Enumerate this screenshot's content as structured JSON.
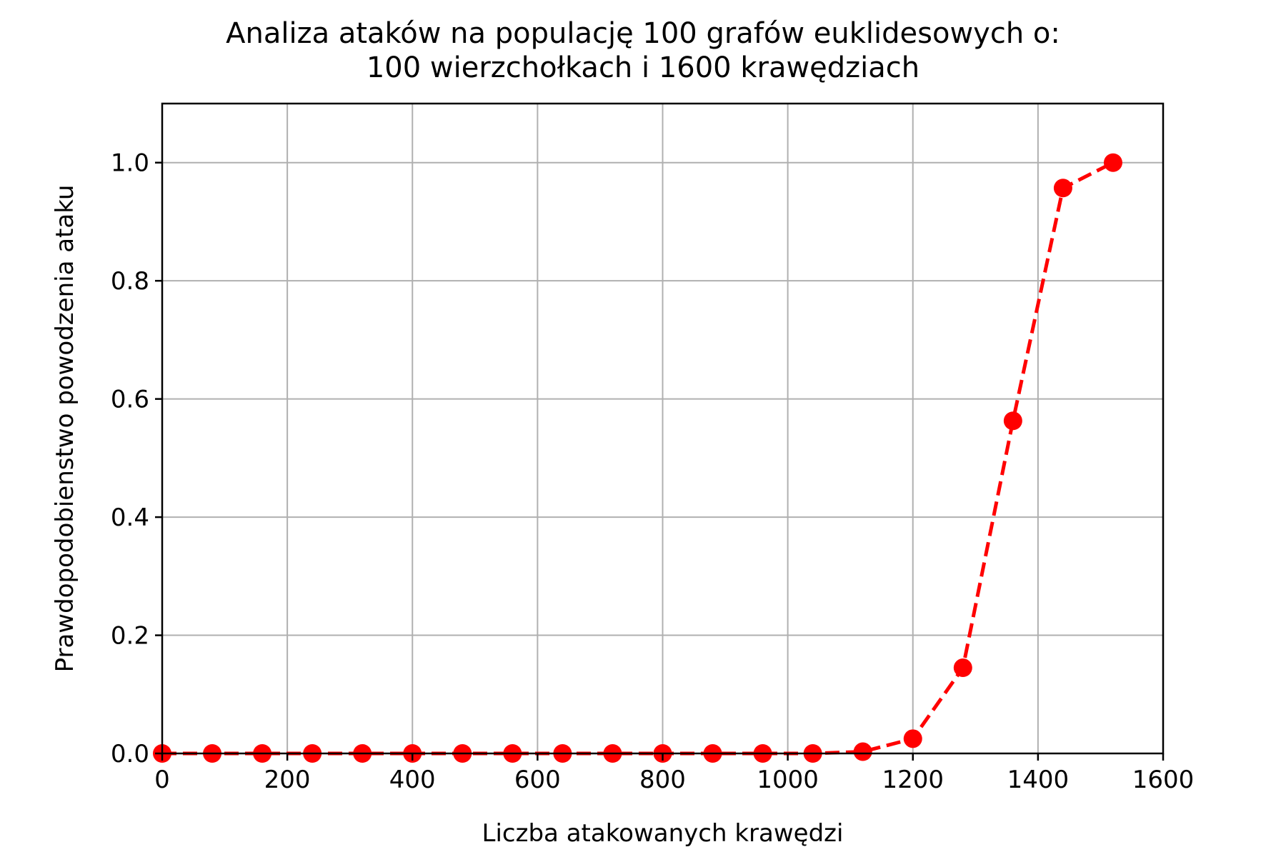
{
  "chart_data": {
    "type": "line",
    "title": [
      "Analiza ataków na populację 100 grafów euklidesowych o:",
      "100 wierzchołkach i 1600 krawędziach"
    ],
    "xlabel": "Liczba atakowanych krawędzi",
    "ylabel": "Prawdopodobienstwo powodzenia ataku",
    "xlim": [
      0,
      1600
    ],
    "ylim": [
      0,
      1.1
    ],
    "xticks": [
      0,
      200,
      400,
      600,
      800,
      1000,
      1200,
      1400,
      1600
    ],
    "yticks": [
      0.0,
      0.2,
      0.4,
      0.6,
      0.8,
      1.0
    ],
    "xtick_labels": [
      "0",
      "200",
      "400",
      "600",
      "800",
      "1000",
      "1200",
      "1400",
      "1600"
    ],
    "ytick_labels": [
      "0.0",
      "0.2",
      "0.4",
      "0.6",
      "0.8",
      "1.0"
    ],
    "grid": true,
    "series": [
      {
        "color": "#ff0000",
        "line_style": "dashed",
        "marker": "circle",
        "x": [
          0,
          80,
          160,
          240,
          320,
          400,
          480,
          560,
          640,
          720,
          800,
          880,
          960,
          1040,
          1120,
          1200,
          1280,
          1360,
          1440,
          1520
        ],
        "y": [
          0,
          0,
          0,
          0,
          0,
          0,
          0,
          0,
          0,
          0,
          0,
          0,
          0,
          0,
          0.003,
          0.025,
          0.145,
          0.563,
          0.957,
          1.0
        ]
      }
    ]
  }
}
